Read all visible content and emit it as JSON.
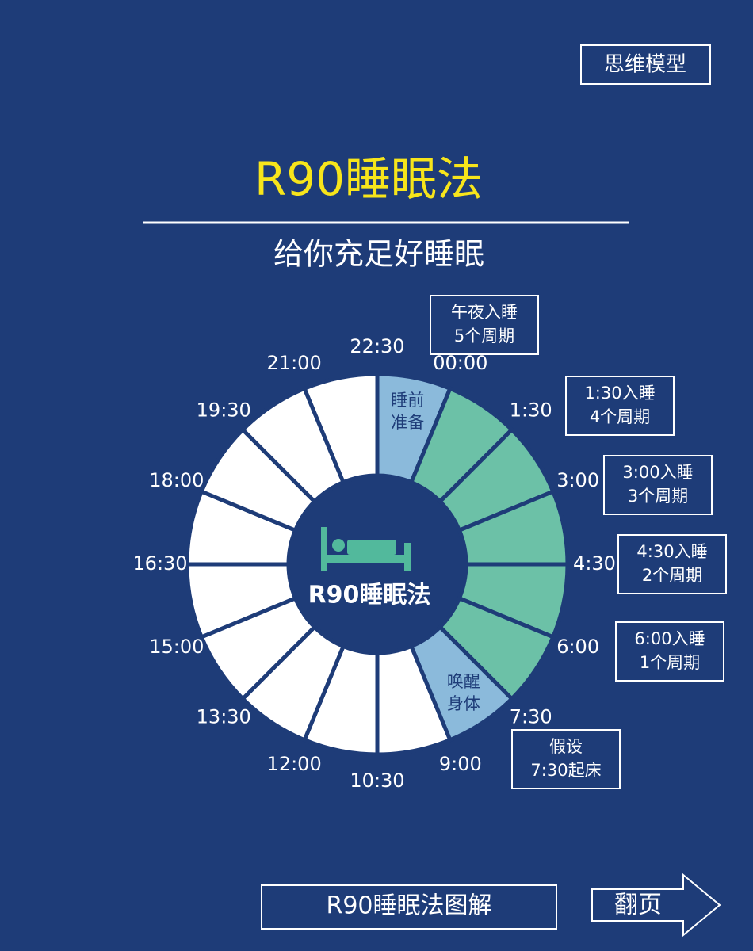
{
  "tag": "思维模型",
  "title": "R90睡眠法",
  "subtitle": "给你充足好睡眠",
  "ring": {
    "times": [
      "22:30",
      "00:00",
      "1:30",
      "3:00",
      "4:30",
      "6:00",
      "7:30",
      "9:00",
      "10:30",
      "12:00",
      "13:30",
      "15:00",
      "16:30",
      "18:00",
      "19:30",
      "21:00"
    ],
    "segments": [
      {
        "color": "#8bbadb",
        "label": [
          "睡前",
          "准备"
        ]
      },
      {
        "color": "#6cc1a7"
      },
      {
        "color": "#6cc1a7"
      },
      {
        "color": "#6cc1a7"
      },
      {
        "color": "#6cc1a7"
      },
      {
        "color": "#6cc1a7"
      },
      {
        "color": "#8bbadb",
        "label": [
          "唤醒",
          "身体"
        ]
      },
      {
        "color": "#ffffff"
      },
      {
        "color": "#ffffff"
      },
      {
        "color": "#ffffff"
      },
      {
        "color": "#ffffff"
      },
      {
        "color": "#ffffff"
      },
      {
        "color": "#ffffff"
      },
      {
        "color": "#ffffff"
      },
      {
        "color": "#ffffff"
      },
      {
        "color": "#ffffff"
      }
    ],
    "center_label": "R90睡眠法"
  },
  "notes": [
    [
      "午夜入睡",
      "5个周期"
    ],
    [
      "1:30入睡",
      "4个周期"
    ],
    [
      "3:00入睡",
      "3个周期"
    ],
    [
      "4:30入睡",
      "2个周期"
    ],
    [
      "6:00入睡",
      "1个周期"
    ],
    [
      "假设",
      "7:30起床"
    ]
  ],
  "footer": {
    "button": "R90睡眠法图解",
    "next": "翻页"
  }
}
